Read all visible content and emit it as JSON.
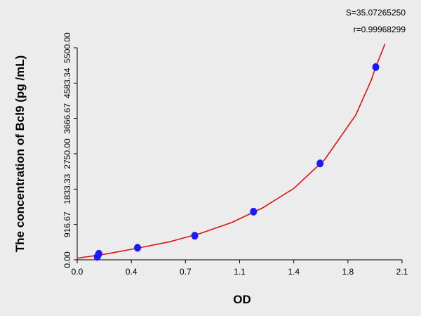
{
  "chart_data": {
    "type": "scatter",
    "annotations": [
      "S=35.07265250",
      "r=0.99968299"
    ],
    "xlabel": "OD",
    "ylabel": "The concentration of Bcl9 (pg /mL)",
    "xlim": [
      0,
      2.1
    ],
    "ylim": [
      0,
      5500
    ],
    "xticks": [
      {
        "value": 0,
        "label": "0.0"
      },
      {
        "value": 0.35,
        "label": "0.4"
      },
      0.7,
      {
        "value": 1.05,
        "label": "1.1"
      },
      1.4,
      {
        "value": 1.75,
        "label": "1.8"
      },
      2.1
    ],
    "yticks": [
      {
        "value": 0,
        "label": "0.00"
      },
      916.67,
      1833.33,
      {
        "value": 2750,
        "label": "2750.00"
      },
      3666.67,
      4583.34,
      {
        "value": 5500,
        "label": "5500.00"
      }
    ],
    "series": [
      {
        "mode": "markers",
        "color": "#1a1aff",
        "x": [
          0.13,
          0.14,
          0.39,
          0.76,
          1.14,
          1.57,
          1.93
        ],
        "values": [
          78,
          156,
          312,
          625,
          1250,
          2500,
          5000
        ]
      },
      {
        "mode": "line",
        "color": "#e01010",
        "x": [
          0,
          0.2,
          0.4,
          0.6,
          0.8,
          1.0,
          1.2,
          1.4,
          1.6,
          1.8,
          1.9,
          1.93,
          1.99
        ],
        "values": [
          40,
          160,
          310,
          470,
          690,
          970,
          1350,
          1850,
          2600,
          3750,
          4650,
          5000,
          5600
        ]
      }
    ]
  }
}
